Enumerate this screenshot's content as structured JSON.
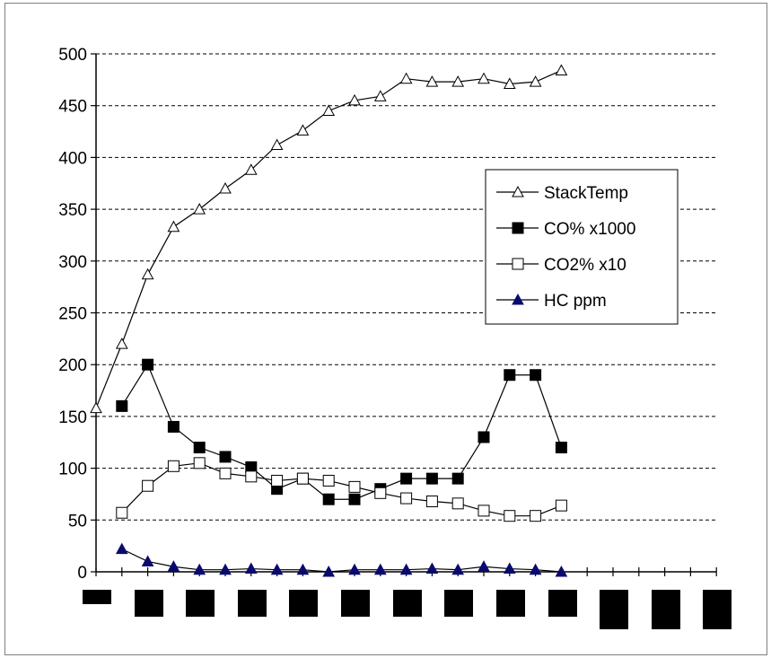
{
  "chart_data": {
    "type": "line",
    "title": "",
    "xlabel": "",
    "ylabel": "",
    "ylim": [
      0,
      500
    ],
    "yticks": [
      "0",
      "50",
      "100",
      "150",
      "200",
      "250",
      "300",
      "350",
      "400",
      "450",
      "500"
    ],
    "grid": true,
    "legend_position": "right-middle",
    "x": [
      0,
      1,
      2,
      3,
      4,
      5,
      6,
      7,
      8,
      9,
      10,
      11,
      12,
      13,
      14,
      15,
      16,
      17,
      18
    ],
    "series": [
      {
        "name": "StackTemp",
        "marker": "open-triangle",
        "color": "#000000",
        "x": [
          0,
          1,
          2,
          3,
          4,
          5,
          6,
          7,
          8,
          9,
          10,
          11,
          12,
          13,
          14,
          15,
          16,
          17,
          18
        ],
        "values": [
          158,
          220,
          287,
          333,
          350,
          370,
          388,
          412,
          426,
          445,
          455,
          459,
          476,
          473,
          473,
          476,
          471,
          473,
          484
        ]
      },
      {
        "name": "CO% x1000",
        "marker": "filled-square",
        "color": "#000000",
        "x": [
          1,
          2,
          3,
          4,
          5,
          6,
          7,
          8,
          9,
          10,
          11,
          12,
          13,
          14,
          15,
          16,
          17,
          18
        ],
        "values": [
          160,
          200,
          140,
          120,
          111,
          101,
          80,
          90,
          70,
          70,
          80,
          90,
          90,
          90,
          130,
          190,
          190,
          120
        ]
      },
      {
        "name": "CO2% x10",
        "marker": "open-square",
        "color": "#000000",
        "x": [
          1,
          2,
          3,
          4,
          5,
          6,
          7,
          8,
          9,
          10,
          11,
          12,
          13,
          14,
          15,
          16,
          17,
          18
        ],
        "values": [
          57,
          83,
          102,
          105,
          95,
          92,
          88,
          90,
          88,
          82,
          76,
          71,
          68,
          66,
          59,
          54,
          54,
          64
        ]
      },
      {
        "name": "HC ppm",
        "marker": "filled-triangle",
        "color": "#0a0a6e",
        "x": [
          1,
          2,
          3,
          4,
          5,
          6,
          7,
          8,
          9,
          10,
          11,
          12,
          13,
          14,
          15,
          16,
          17,
          18
        ],
        "values": [
          22,
          10,
          5,
          2,
          2,
          3,
          2,
          2,
          0,
          2,
          2,
          2,
          3,
          2,
          5,
          3,
          2,
          0
        ]
      }
    ]
  }
}
